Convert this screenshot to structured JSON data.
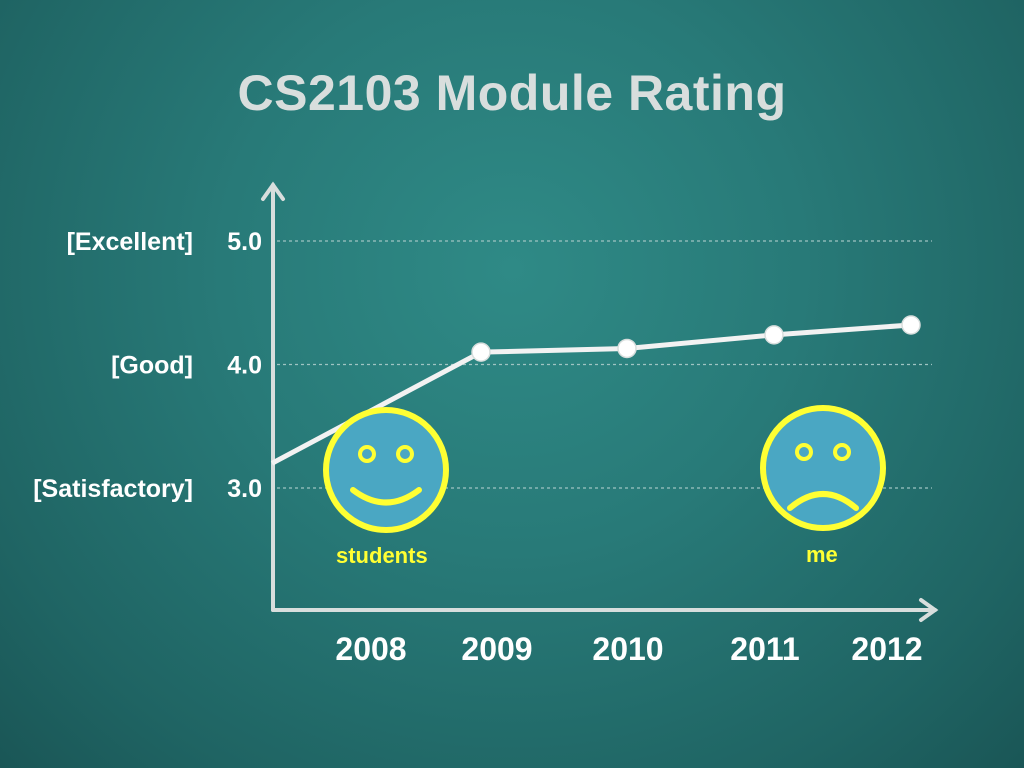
{
  "title": "CS2103 Module Rating",
  "chart_data": {
    "type": "line",
    "title": "CS2103 Module Rating",
    "x": [
      "2008",
      "2009",
      "2010",
      "2011",
      "2012"
    ],
    "series": [
      {
        "values": [
          3.2,
          4.1,
          4.13,
          4.24,
          4.32
        ]
      }
    ],
    "yticks": [
      {
        "value": 5.0,
        "label": "5.0",
        "desc": "[Excellent]"
      },
      {
        "value": 4.0,
        "label": "4.0",
        "desc": "[Good]"
      },
      {
        "value": 3.0,
        "label": "3.0",
        "desc": "[Satisfactory]"
      }
    ],
    "ylim": [
      2.0,
      5.5
    ],
    "grid": true,
    "annotations": [
      {
        "label": "students",
        "face": "happy",
        "near_x": "2008"
      },
      {
        "label": "me",
        "face": "sad",
        "near_x": "2011"
      }
    ],
    "colors": {
      "line": "#f2f2f2",
      "axis": "#d8dedd",
      "grid": "#9fc4c2",
      "face_fill": "#4aa7c3",
      "face_stroke": "#ffff33",
      "text": "#ffffff"
    }
  }
}
